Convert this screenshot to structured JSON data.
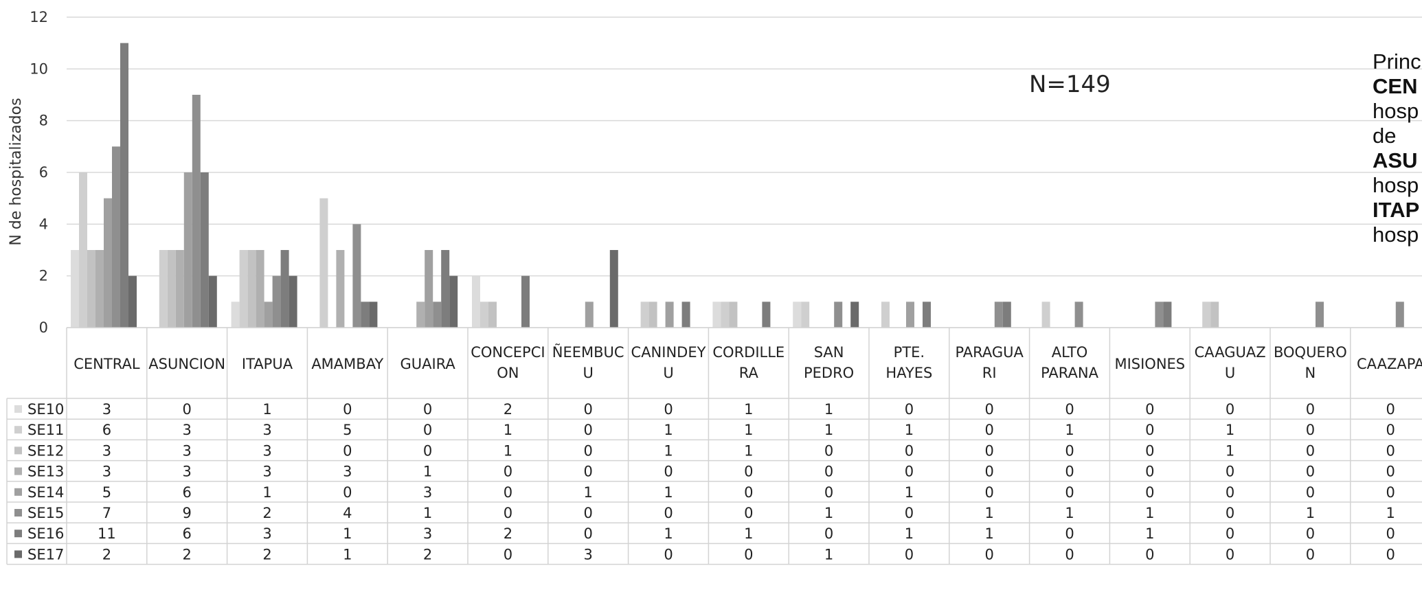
{
  "chart_data": {
    "type": "bar",
    "ylabel": "N de hospitalizados",
    "ylim": [
      0,
      12
    ],
    "yticks": [
      0,
      2,
      4,
      6,
      8,
      10,
      12
    ],
    "annotation": "N=149",
    "grid": true,
    "legend": "table-rows-left",
    "categories": [
      "CENTRAL",
      "ASUNCION",
      "ITAPUA",
      "AMAMBAY",
      "GUAIRA",
      "CONCEPCION",
      "ÑEEMBUCU",
      "CANINDEYU",
      "CORDILLERA",
      "SAN PEDRO",
      "PTE. HAYES",
      "PARAGUARI",
      "ALTO PARANA",
      "MISIONES",
      "CAAGUAZU",
      "BOQUERON",
      "CAAZAPA"
    ],
    "category_label_lines": [
      [
        "CENTRAL"
      ],
      [
        "ASUNCION"
      ],
      [
        "ITAPUA"
      ],
      [
        "AMAMBAY"
      ],
      [
        "GUAIRA"
      ],
      [
        "CONCEPCI",
        "ON"
      ],
      [
        "ÑEEMBUC",
        "U"
      ],
      [
        "CANINDEY",
        "U"
      ],
      [
        "CORDILLE",
        "RA"
      ],
      [
        "SAN",
        "PEDRO"
      ],
      [
        "PTE.",
        "HAYES"
      ],
      [
        "PARAGUA",
        "RI"
      ],
      [
        "ALTO",
        "PARANA"
      ],
      [
        "MISIONES"
      ],
      [
        "CAAGUAZ",
        "U"
      ],
      [
        "BOQUERO",
        "N"
      ],
      [
        "CAAZAPA"
      ]
    ],
    "series": [
      {
        "name": "SE10",
        "color": "#dcdcdc",
        "values": [
          3,
          0,
          1,
          0,
          0,
          2,
          0,
          0,
          1,
          1,
          0,
          0,
          0,
          0,
          0,
          0,
          0
        ]
      },
      {
        "name": "SE11",
        "color": "#cfcfcf",
        "values": [
          6,
          3,
          3,
          5,
          0,
          1,
          0,
          1,
          1,
          1,
          1,
          0,
          1,
          0,
          1,
          0,
          0
        ]
      },
      {
        "name": "SE12",
        "color": "#c2c2c2",
        "values": [
          3,
          3,
          3,
          0,
          0,
          1,
          0,
          1,
          1,
          0,
          0,
          0,
          0,
          0,
          1,
          0,
          0
        ]
      },
      {
        "name": "SE13",
        "color": "#b0b0b0",
        "values": [
          3,
          3,
          3,
          3,
          1,
          0,
          0,
          0,
          0,
          0,
          0,
          0,
          0,
          0,
          0,
          0,
          0
        ]
      },
      {
        "name": "SE14",
        "color": "#a0a0a0",
        "values": [
          5,
          6,
          1,
          0,
          3,
          0,
          1,
          1,
          0,
          0,
          1,
          0,
          0,
          0,
          0,
          0,
          0
        ]
      },
      {
        "name": "SE15",
        "color": "#8f8f8f",
        "values": [
          7,
          9,
          2,
          4,
          1,
          0,
          0,
          0,
          0,
          1,
          0,
          1,
          1,
          1,
          0,
          1,
          1
        ]
      },
      {
        "name": "SE16",
        "color": "#7d7d7d",
        "values": [
          11,
          6,
          3,
          1,
          3,
          2,
          0,
          1,
          1,
          0,
          1,
          1,
          0,
          1,
          0,
          0,
          0
        ]
      },
      {
        "name": "SE17",
        "color": "#6a6a6a",
        "values": [
          2,
          2,
          2,
          1,
          2,
          0,
          3,
          0,
          0,
          1,
          0,
          0,
          0,
          0,
          0,
          0,
          0
        ]
      }
    ]
  },
  "side_note": {
    "lines": [
      {
        "text": "Princ",
        "bold": false
      },
      {
        "text": "CEN",
        "bold": true
      },
      {
        "text": "hosp",
        "bold": false
      },
      {
        "text": "de",
        "bold": false
      },
      {
        "text": "ASU",
        "bold": true
      },
      {
        "text": "hosp",
        "bold": false
      },
      {
        "text": "ITAP",
        "bold": true
      },
      {
        "text": "hosp",
        "bold": false
      }
    ]
  }
}
